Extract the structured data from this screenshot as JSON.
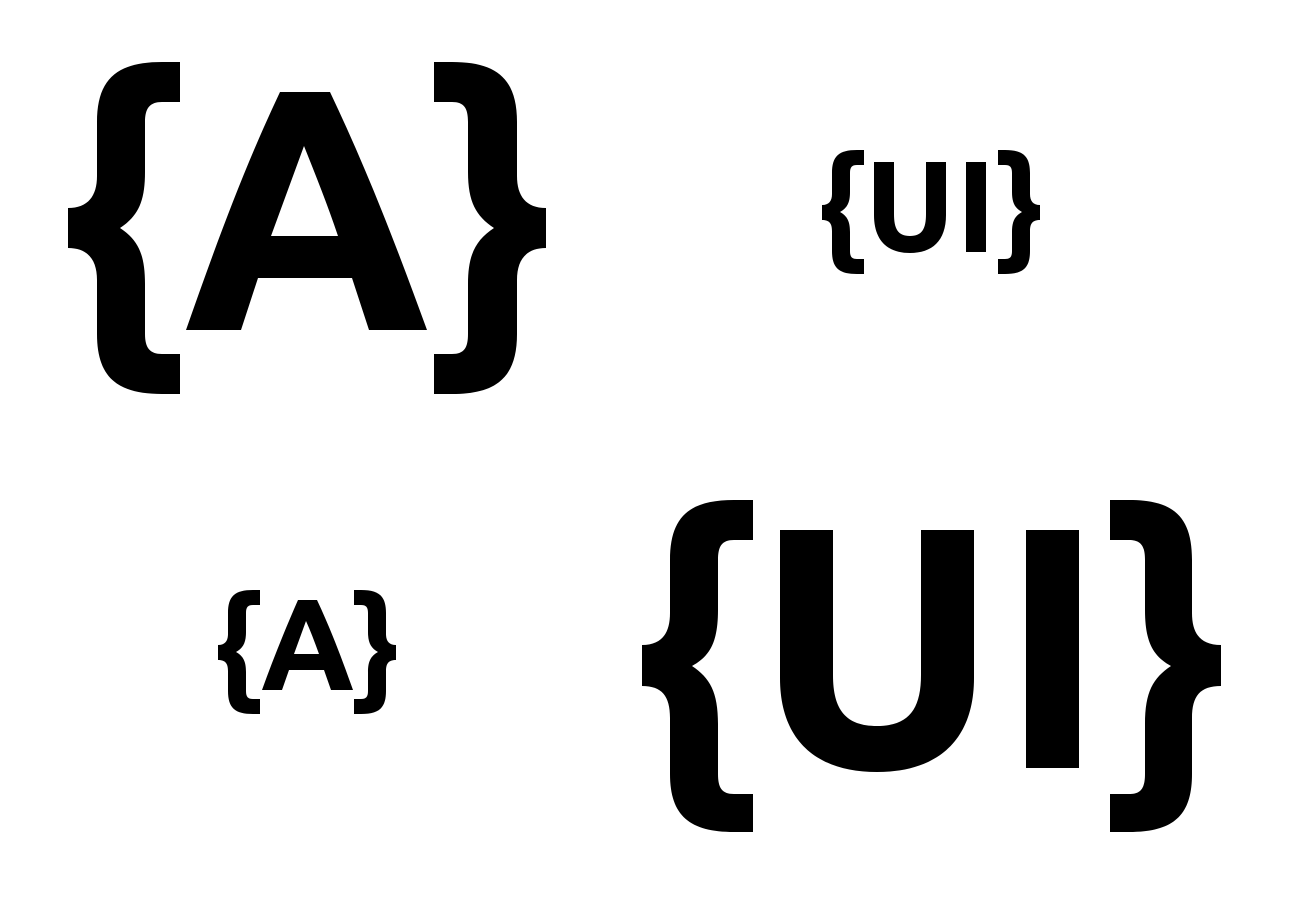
{
  "logos": [
    {
      "text": "{A}",
      "color": "#000000"
    },
    {
      "text": "{UI}",
      "color": "#000000"
    },
    {
      "text": "{A}",
      "color": "#000000"
    },
    {
      "text": "{UI}",
      "color": "#000000"
    }
  ]
}
